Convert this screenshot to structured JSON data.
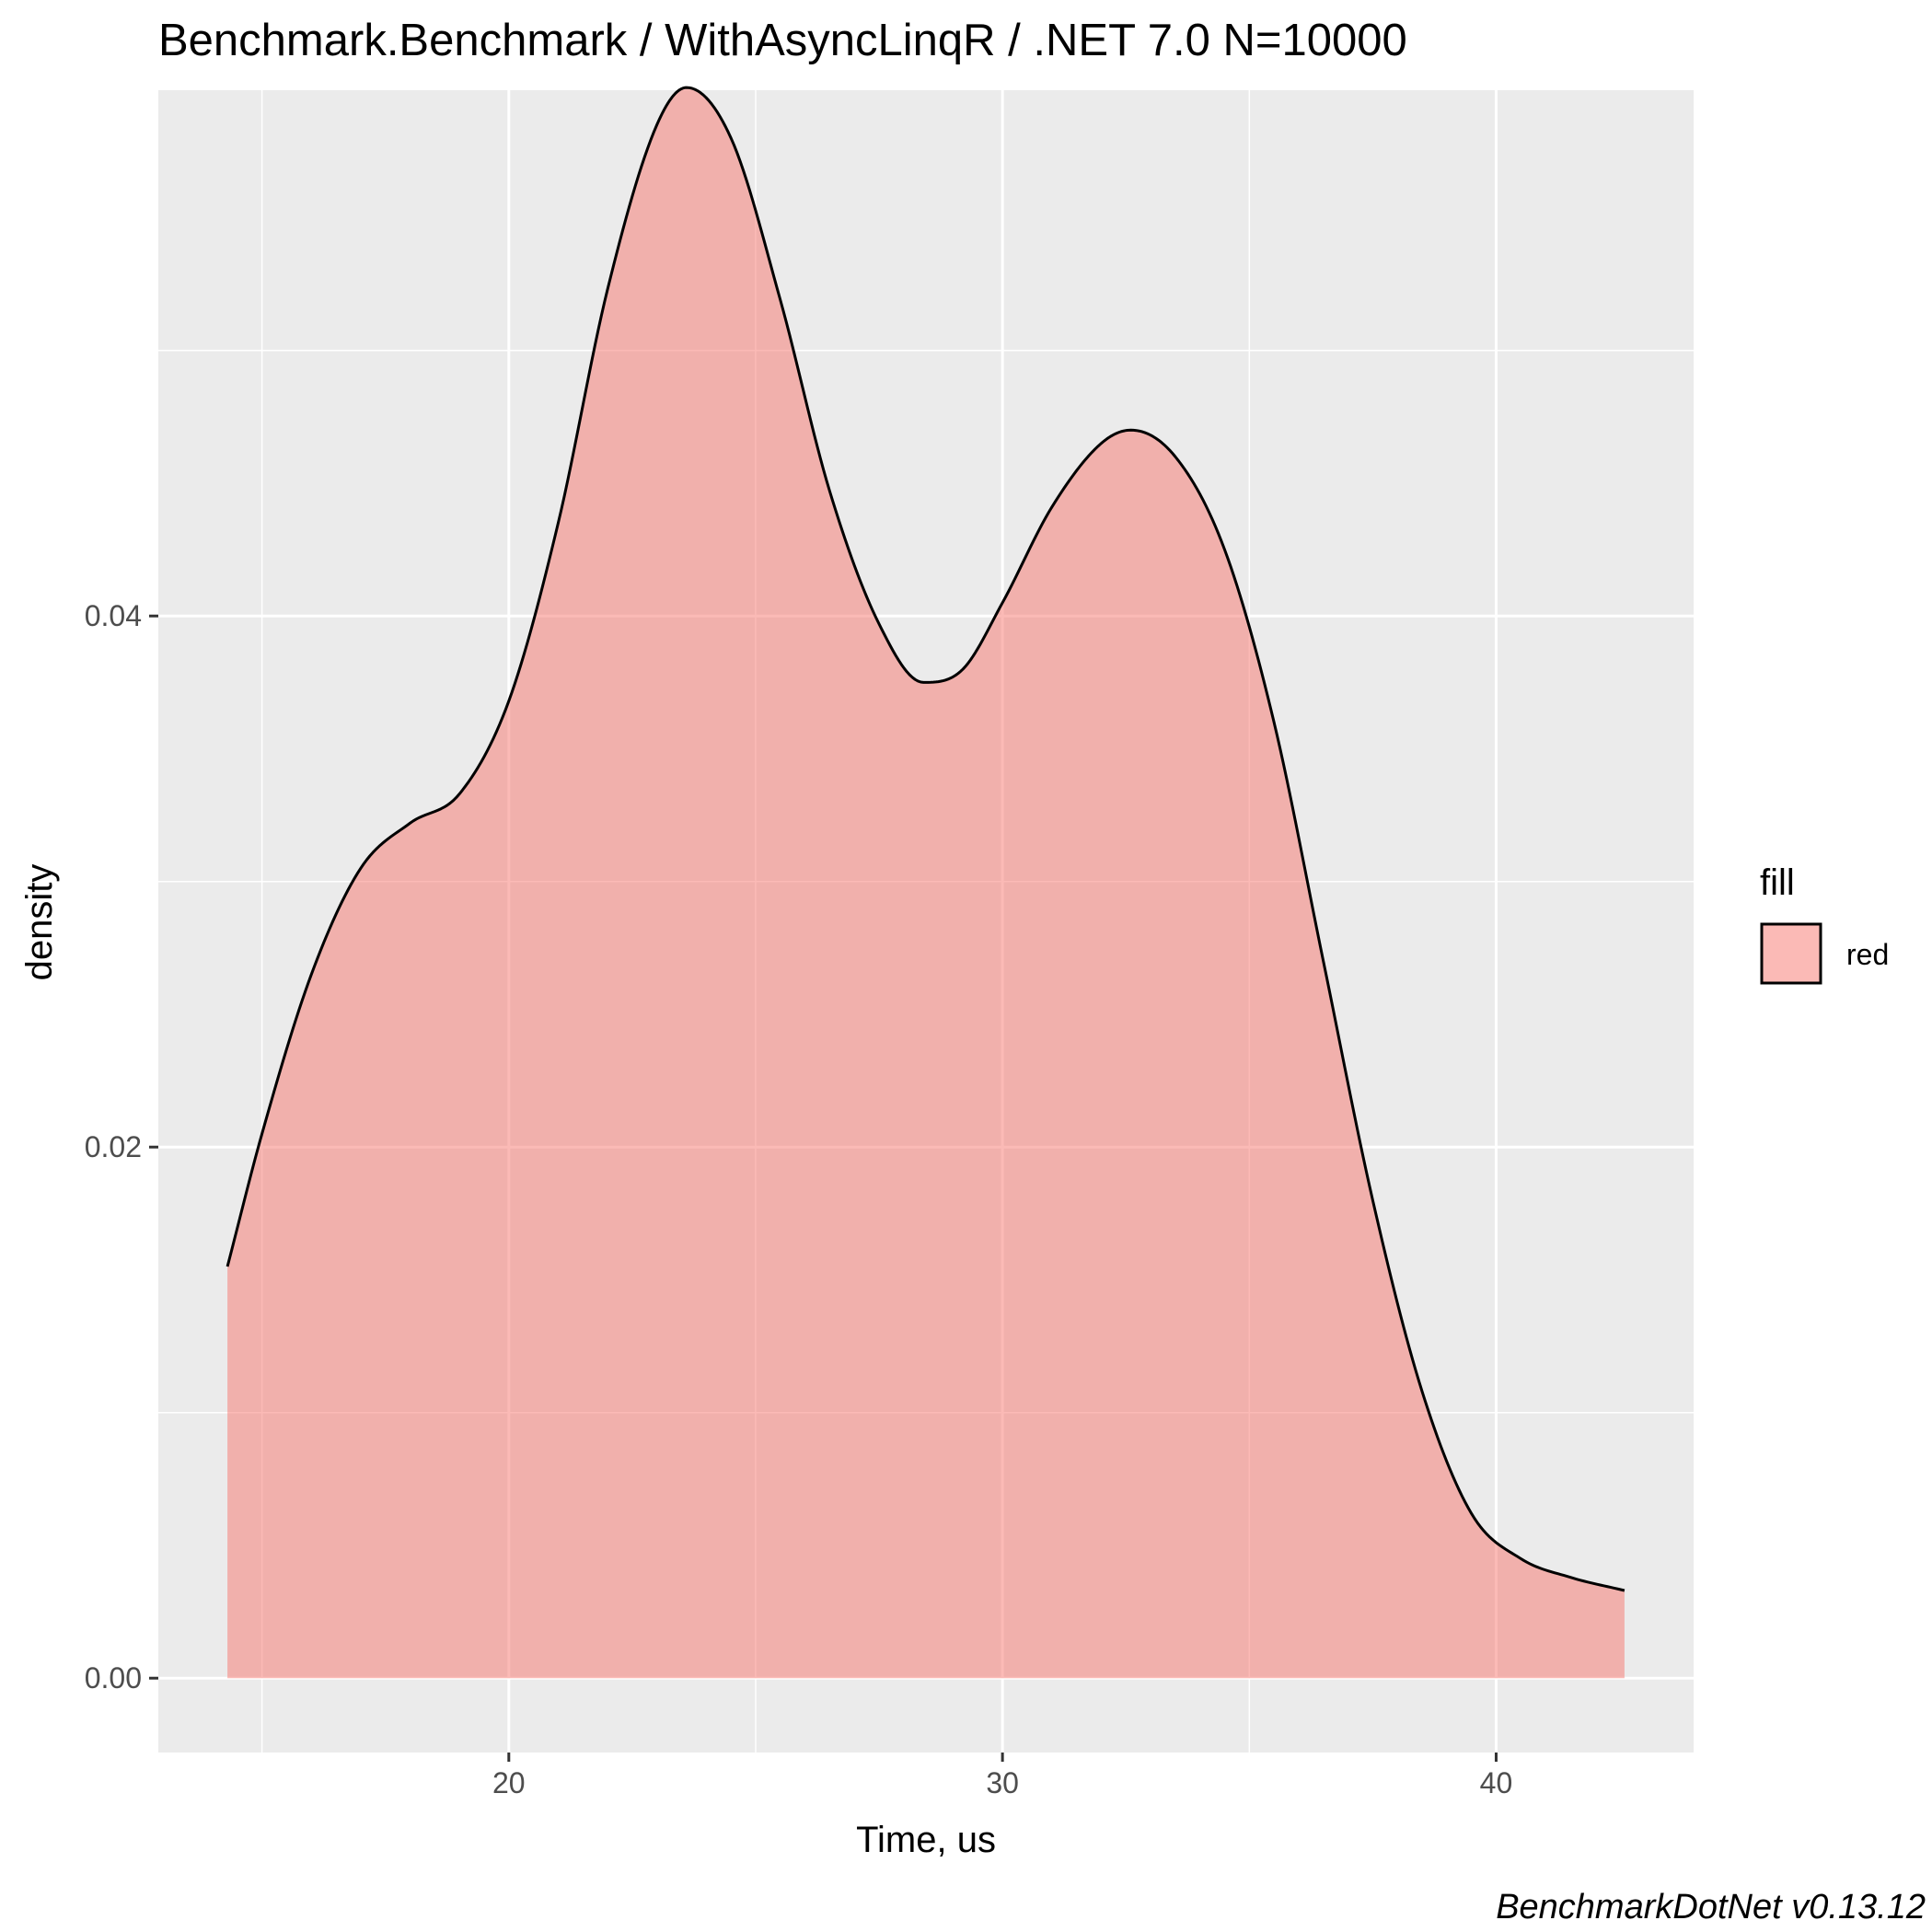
{
  "chart_data": {
    "type": "area",
    "title": "Benchmark.Benchmark / WithAsyncLinqR / .NET 7.0 N=10000",
    "xlabel": "Time, us",
    "ylabel": "density",
    "caption": "BenchmarkDotNet v0.13.12",
    "xlim": [
      12.9,
      44
    ],
    "ylim": [
      -0.0028,
      0.0598
    ],
    "x_ticks": [
      20,
      30,
      40
    ],
    "x_tick_labels": [
      "20",
      "30",
      "40"
    ],
    "y_ticks": [
      0,
      0.02,
      0.04
    ],
    "y_tick_labels": [
      "0.00",
      "0.02",
      "0.04"
    ],
    "grid": true,
    "legend": {
      "title": "fill",
      "items": [
        {
          "label": "red",
          "color": "#F8766D"
        }
      ],
      "position": "right"
    },
    "colors": {
      "fill": "#F8766D",
      "fill_opacity": 0.5,
      "line": "#000000",
      "panel": "#EBEBEB",
      "grid": "#FFFFFF"
    },
    "series": [
      {
        "x": [
          14.3,
          15.0,
          16.0,
          17.0,
          18.0,
          19.0,
          20.0,
          21.0,
          22.0,
          23.0,
          23.6,
          24.5,
          25.5,
          26.5,
          27.5,
          28.4,
          29.2,
          30.0,
          31.0,
          32.0,
          32.6,
          33.5,
          34.5,
          35.5,
          36.5,
          37.5,
          38.5,
          39.5,
          40.5,
          41.5,
          42.6
        ],
        "y": [
          0.0155,
          0.0205,
          0.0265,
          0.0305,
          0.0322,
          0.0333,
          0.0368,
          0.0435,
          0.0523,
          0.0585,
          0.0599,
          0.058,
          0.0519,
          0.0447,
          0.0397,
          0.0375,
          0.038,
          0.0405,
          0.0441,
          0.0465,
          0.047,
          0.046,
          0.0425,
          0.036,
          0.027,
          0.018,
          0.0108,
          0.0062,
          0.0045,
          0.0038,
          0.0033
        ]
      }
    ]
  }
}
